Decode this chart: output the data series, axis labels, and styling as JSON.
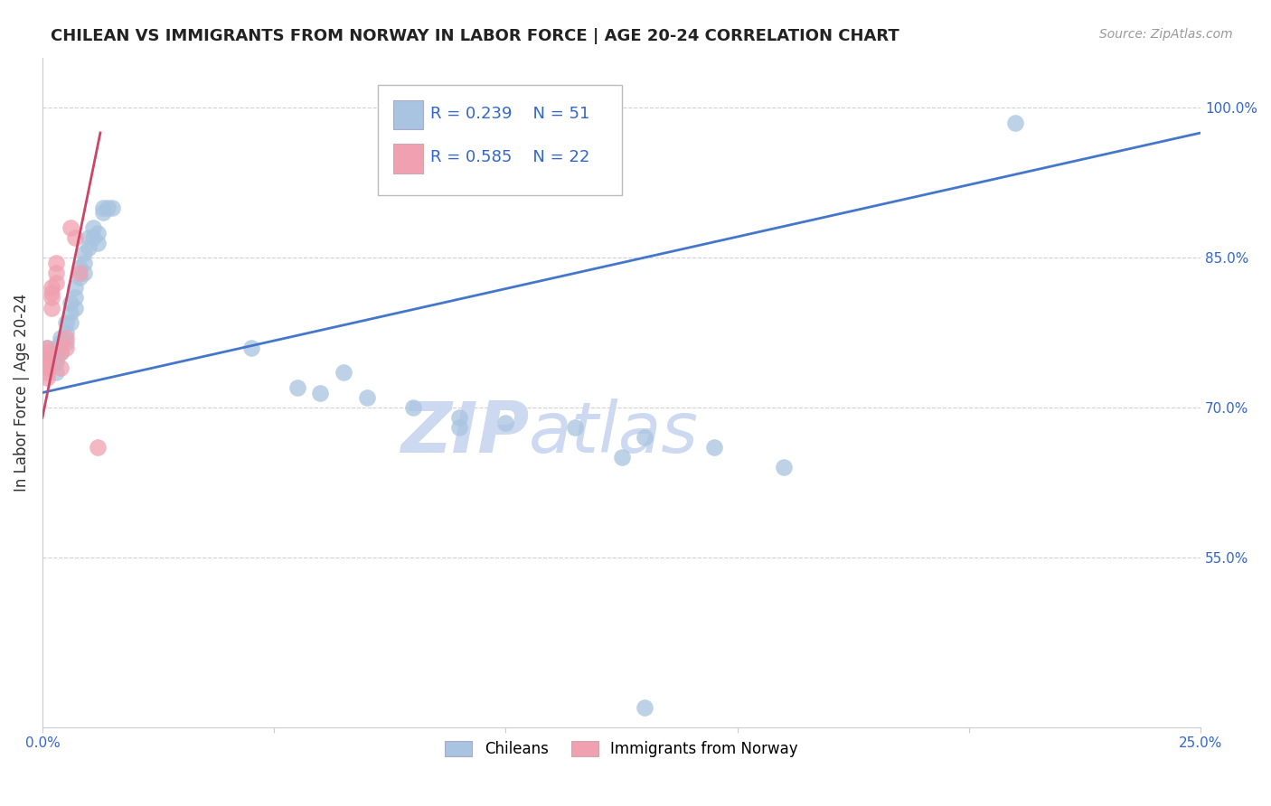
{
  "title": "CHILEAN VS IMMIGRANTS FROM NORWAY IN LABOR FORCE | AGE 20-24 CORRELATION CHART",
  "source": "Source: ZipAtlas.com",
  "ylabel": "In Labor Force | Age 20-24",
  "xlim": [
    0.0,
    0.25
  ],
  "ylim": [
    0.38,
    1.05
  ],
  "ytick_positions": [
    0.55,
    0.7,
    0.85,
    1.0
  ],
  "yticklabels": [
    "55.0%",
    "70.0%",
    "85.0%",
    "100.0%"
  ],
  "grid_color": "#cccccc",
  "background_color": "#ffffff",
  "chileans_color": "#a8c4e0",
  "norway_color": "#f0a0b0",
  "blue_line_color": "#4477cc",
  "pink_line_color": "#cc4466",
  "watermark_color": "#ccd9f0",
  "legend_R_blue": "R = 0.239",
  "legend_N_blue": "N = 51",
  "legend_R_pink": "R = 0.585",
  "legend_N_pink": "N = 22",
  "chileans_x": [
    0.001,
    0.002,
    0.002,
    0.003,
    0.003,
    0.003,
    0.003,
    0.003,
    0.004,
    0.004,
    0.004,
    0.005,
    0.005,
    0.005,
    0.006,
    0.006,
    0.006,
    0.007,
    0.007,
    0.007,
    0.008,
    0.008,
    0.009,
    0.009,
    0.009,
    0.01,
    0.01,
    0.011,
    0.011,
    0.012,
    0.012,
    0.013,
    0.013,
    0.014,
    0.015,
    0.045,
    0.055,
    0.065,
    0.09,
    0.1,
    0.115,
    0.125,
    0.13,
    0.145,
    0.16,
    0.21,
    0.06,
    0.07,
    0.08,
    0.09,
    0.13
  ],
  "chileans_y": [
    0.76,
    0.755,
    0.75,
    0.76,
    0.755,
    0.75,
    0.745,
    0.735,
    0.77,
    0.765,
    0.755,
    0.785,
    0.775,
    0.765,
    0.805,
    0.795,
    0.785,
    0.82,
    0.81,
    0.8,
    0.84,
    0.83,
    0.855,
    0.845,
    0.835,
    0.87,
    0.86,
    0.88,
    0.87,
    0.875,
    0.865,
    0.9,
    0.895,
    0.9,
    0.9,
    0.76,
    0.72,
    0.735,
    0.69,
    0.685,
    0.68,
    0.65,
    0.67,
    0.66,
    0.64,
    0.985,
    0.715,
    0.71,
    0.7,
    0.68,
    0.4
  ],
  "norway_x": [
    0.001,
    0.001,
    0.001,
    0.001,
    0.001,
    0.001,
    0.001,
    0.002,
    0.002,
    0.002,
    0.002,
    0.003,
    0.003,
    0.003,
    0.004,
    0.004,
    0.005,
    0.005,
    0.006,
    0.007,
    0.008,
    0.012
  ],
  "norway_y": [
    0.76,
    0.755,
    0.75,
    0.745,
    0.74,
    0.735,
    0.73,
    0.82,
    0.815,
    0.81,
    0.8,
    0.845,
    0.835,
    0.825,
    0.755,
    0.74,
    0.77,
    0.76,
    0.88,
    0.87,
    0.835,
    0.66
  ],
  "blue_line_x": [
    0.0,
    0.25
  ],
  "blue_line_y": [
    0.715,
    0.975
  ],
  "pink_line_x": [
    0.0,
    0.0125
  ],
  "pink_line_y": [
    0.69,
    0.975
  ]
}
